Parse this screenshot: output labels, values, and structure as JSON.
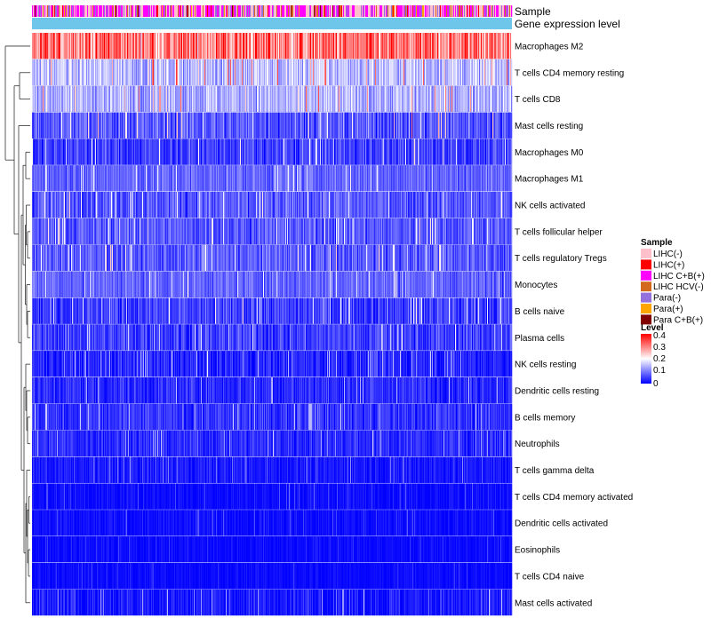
{
  "chart_data": {
    "type": "heatmap",
    "title": "",
    "annotation_tracks": [
      "Sample",
      "Gene expression level"
    ],
    "rows": [
      "Macrophages M2",
      "T cells CD4 memory resting",
      "T cells CD8",
      "Mast cells resting",
      "Macrophages M0",
      "Macrophages M1",
      "NK cells activated",
      "T cells follicular helper",
      "T cells regulatory  Tregs",
      "Monocytes",
      "B cells naive",
      "Plasma cells",
      "NK cells resting",
      "Dendritic cells resting",
      "B cells memory",
      "Neutrophils",
      "T cells gamma delta",
      "T cells CD4 memory activated",
      "Dendritic cells activated",
      "Eosinophils",
      "T cells CD4 naive",
      "Mast cells activated"
    ],
    "row_mean_level": [
      0.3,
      0.15,
      0.14,
      0.07,
      0.05,
      0.08,
      0.07,
      0.07,
      0.07,
      0.08,
      0.05,
      0.05,
      0.03,
      0.035,
      0.04,
      0.035,
      0.02,
      0.01,
      0.01,
      0.008,
      0.008,
      0.02
    ],
    "row_spread": [
      0.1,
      0.06,
      0.06,
      0.06,
      0.05,
      0.04,
      0.05,
      0.05,
      0.05,
      0.04,
      0.05,
      0.05,
      0.04,
      0.04,
      0.04,
      0.035,
      0.03,
      0.02,
      0.02,
      0.015,
      0.015,
      0.04
    ],
    "n_samples": 540,
    "legend_sample": {
      "title": "Sample",
      "entries": [
        {
          "label": "LIHC(-)",
          "color": "#ffc0cb"
        },
        {
          "label": "LIHC(+)",
          "color": "#ff0000"
        },
        {
          "label": "LIHC C+B(+)",
          "color": "#ff00ff"
        },
        {
          "label": "LIHC HCV(-)",
          "color": "#d2691e"
        },
        {
          "label": "Para(-)",
          "color": "#9370db"
        },
        {
          "label": "Para(+)",
          "color": "#ffa500"
        },
        {
          "label": "Para C+B(+)",
          "color": "#800000"
        }
      ],
      "mix_weights": [
        0.34,
        0.04,
        0.36,
        0.08,
        0.14,
        0.02,
        0.02
      ]
    },
    "gene_expression_color": "#6ec6ea",
    "legend_level": {
      "title": "Level",
      "ticks": [
        "0.4",
        "0.3",
        "0.2",
        "0.1",
        "0"
      ],
      "range": [
        0,
        0.4
      ],
      "colors": [
        "#0000ff",
        "#ffffff",
        "#ff0000"
      ]
    },
    "dendrogram": "hierarchical clustering of rows (left side)"
  }
}
